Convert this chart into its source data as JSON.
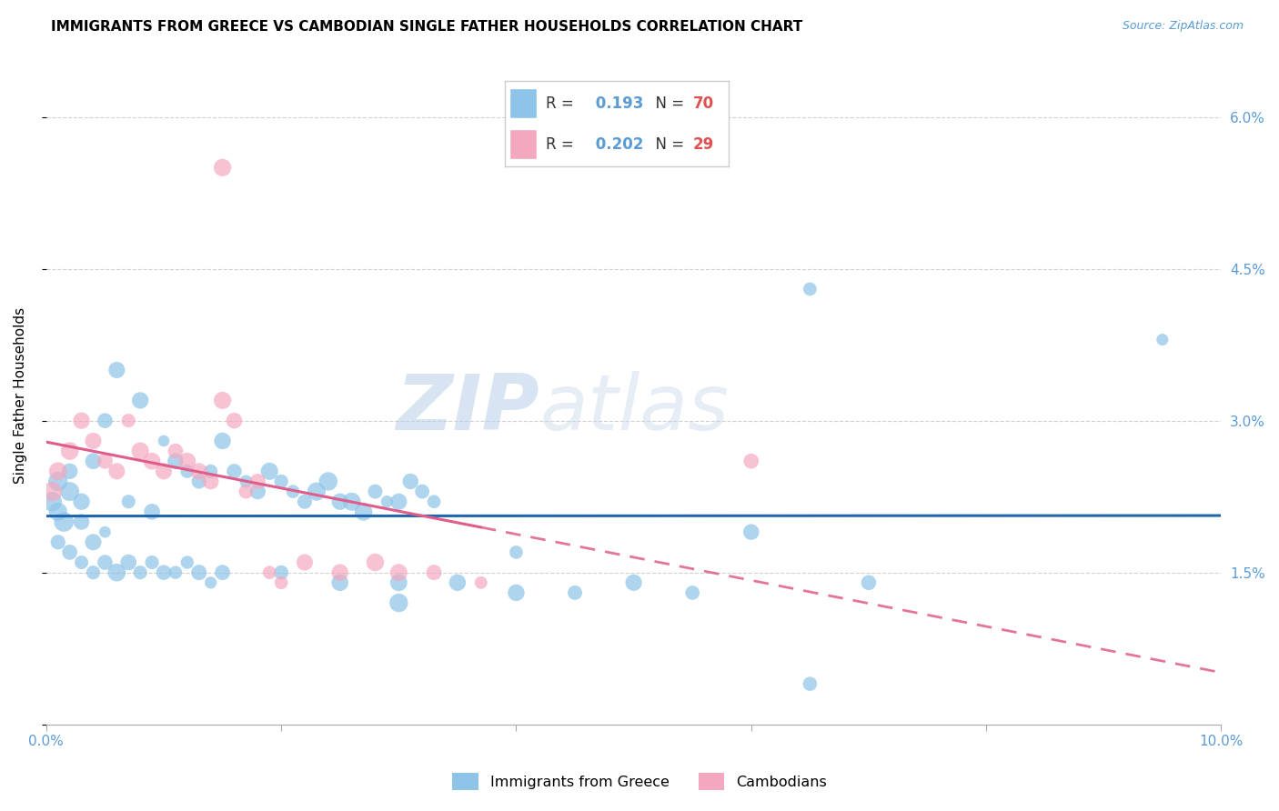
{
  "title": "IMMIGRANTS FROM GREECE VS CAMBODIAN SINGLE FATHER HOUSEHOLDS CORRELATION CHART",
  "source": "Source: ZipAtlas.com",
  "ylabel": "Single Father Households",
  "legend_label1": "Immigrants from Greece",
  "legend_label2": "Cambodians",
  "R1": 0.193,
  "N1": 70,
  "R2": 0.202,
  "N2": 29,
  "color1": "#8ec4e8",
  "color2": "#f4a8c0",
  "line_color1": "#2166ac",
  "line_color2": "#e05c8a",
  "xlim": [
    0.0,
    0.1
  ],
  "ylim": [
    0.0,
    0.065
  ],
  "yticks": [
    0.0,
    0.015,
    0.03,
    0.045,
    0.06
  ],
  "ytick_labels": [
    "",
    "1.5%",
    "3.0%",
    "4.5%",
    "6.0%"
  ],
  "xticks": [
    0.0,
    0.02,
    0.04,
    0.06,
    0.08,
    0.1
  ],
  "xtick_labels": [
    "0.0%",
    "",
    "",
    "",
    "",
    "10.0%"
  ],
  "blue_x": [
    0.0005,
    0.001,
    0.0015,
    0.001,
    0.002,
    0.002,
    0.003,
    0.003,
    0.004,
    0.004,
    0.005,
    0.005,
    0.006,
    0.007,
    0.008,
    0.009,
    0.01,
    0.011,
    0.012,
    0.013,
    0.014,
    0.015,
    0.016,
    0.017,
    0.018,
    0.019,
    0.02,
    0.021,
    0.022,
    0.023,
    0.024,
    0.025,
    0.026,
    0.027,
    0.028,
    0.029,
    0.03,
    0.031,
    0.032,
    0.033,
    0.001,
    0.002,
    0.003,
    0.004,
    0.005,
    0.006,
    0.007,
    0.008,
    0.009,
    0.01,
    0.011,
    0.012,
    0.013,
    0.014,
    0.015,
    0.02,
    0.025,
    0.03,
    0.035,
    0.04,
    0.045,
    0.05,
    0.055,
    0.06,
    0.065,
    0.07,
    0.095,
    0.065,
    0.03,
    0.04
  ],
  "blue_y": [
    0.022,
    0.024,
    0.02,
    0.021,
    0.023,
    0.025,
    0.02,
    0.022,
    0.018,
    0.026,
    0.019,
    0.03,
    0.035,
    0.022,
    0.032,
    0.021,
    0.028,
    0.026,
    0.025,
    0.024,
    0.025,
    0.028,
    0.025,
    0.024,
    0.023,
    0.025,
    0.024,
    0.023,
    0.022,
    0.023,
    0.024,
    0.022,
    0.022,
    0.021,
    0.023,
    0.022,
    0.022,
    0.024,
    0.023,
    0.022,
    0.018,
    0.017,
    0.016,
    0.015,
    0.016,
    0.015,
    0.016,
    0.015,
    0.016,
    0.015,
    0.015,
    0.016,
    0.015,
    0.014,
    0.015,
    0.015,
    0.014,
    0.014,
    0.014,
    0.013,
    0.013,
    0.014,
    0.013,
    0.019,
    0.004,
    0.014,
    0.038,
    0.043,
    0.012,
    0.017
  ],
  "pink_x": [
    0.0005,
    0.001,
    0.002,
    0.003,
    0.004,
    0.005,
    0.006,
    0.007,
    0.008,
    0.009,
    0.01,
    0.011,
    0.012,
    0.013,
    0.014,
    0.015,
    0.016,
    0.017,
    0.018,
    0.019,
    0.02,
    0.022,
    0.025,
    0.028,
    0.03,
    0.033,
    0.037,
    0.06,
    0.015
  ],
  "pink_y": [
    0.023,
    0.025,
    0.027,
    0.03,
    0.028,
    0.026,
    0.025,
    0.03,
    0.027,
    0.026,
    0.025,
    0.027,
    0.026,
    0.025,
    0.024,
    0.032,
    0.03,
    0.023,
    0.024,
    0.015,
    0.014,
    0.016,
    0.015,
    0.016,
    0.015,
    0.015,
    0.014,
    0.026,
    0.055
  ],
  "watermark_zip": "ZIP",
  "watermark_atlas": "atlas",
  "background_color": "#ffffff",
  "grid_color": "#d0d0d0",
  "axis_tick_color": "#5b9bd5",
  "title_fontsize": 11,
  "axis_label_fontsize": 11,
  "tick_fontsize": 11
}
